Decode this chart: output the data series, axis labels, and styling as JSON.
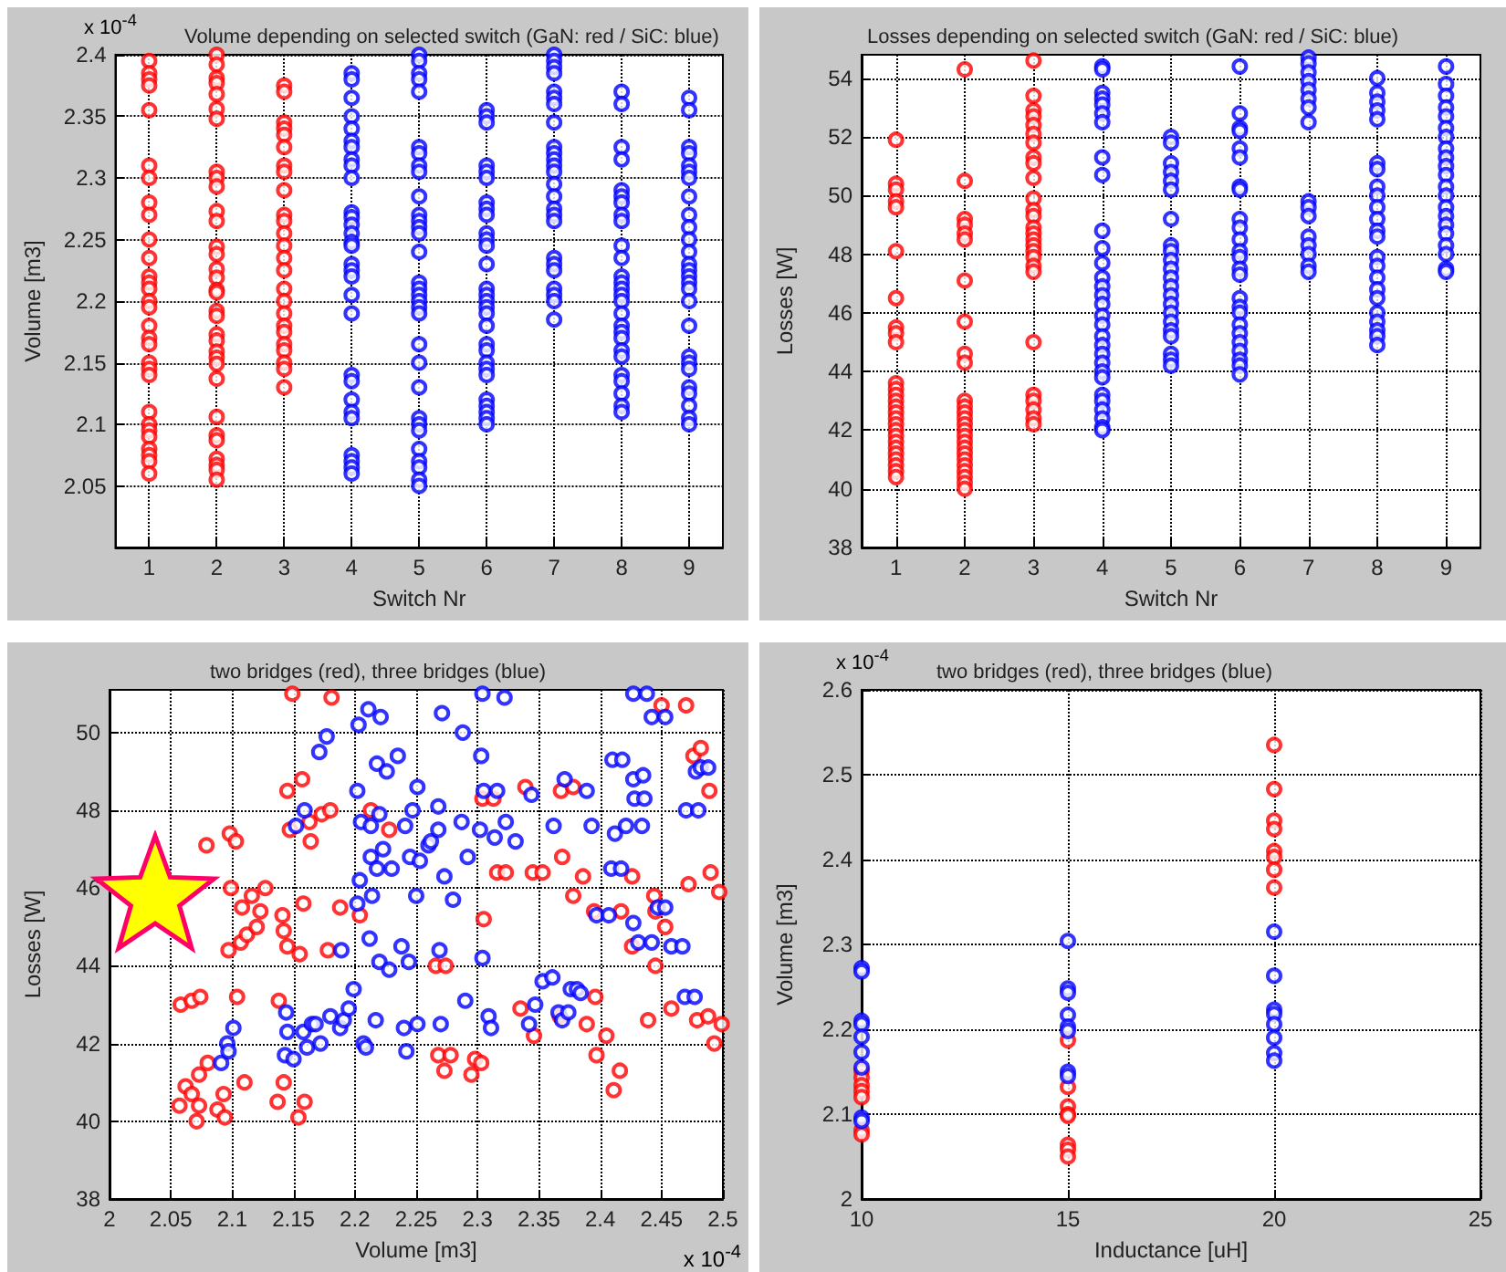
{
  "chart_data": [
    {
      "type": "scatter",
      "title": "Volume depending on selected switch (GaN: red / SiC: blue)",
      "xlabel": "Switch Nr",
      "ylabel": "Volume [m3]",
      "annotations": [
        "x 10$^{-4}$"
      ],
      "xlim": [
        0.5,
        9.5
      ],
      "xticks": [
        1,
        2,
        3,
        4,
        5,
        6,
        7,
        8,
        9
      ],
      "ylim": [
        2,
        2.4
      ],
      "yticks": [
        2.05,
        2.1,
        2.15,
        2.2,
        2.25,
        2.3,
        2.35,
        2.4
      ],
      "grid": true,
      "marker": "circle",
      "series": [
        {
          "color": "#ff0000",
          "x": [
            1,
            1,
            1,
            1,
            1,
            1,
            1,
            1,
            1,
            1,
            1,
            1,
            1,
            1,
            1,
            1,
            1,
            1,
            1,
            1,
            1,
            1,
            1,
            1,
            1,
            1,
            1,
            1,
            1,
            1,
            2,
            2,
            2,
            2,
            2,
            2,
            2,
            2,
            2,
            2,
            2,
            2,
            2,
            2,
            2,
            2,
            2,
            2,
            2,
            2,
            2,
            2,
            2,
            2,
            2,
            2,
            2,
            2,
            2,
            2,
            2,
            2,
            2,
            3,
            3,
            3,
            3,
            3,
            3,
            3,
            3,
            3,
            3,
            3,
            3,
            3,
            3,
            3,
            3,
            3,
            3,
            3,
            3,
            3,
            3,
            3,
            3,
            3
          ],
          "values": [
            2.395,
            2.385,
            2.38,
            2.375,
            2.355,
            2.31,
            2.3,
            2.28,
            2.27,
            2.25,
            2.235,
            2.22,
            2.215,
            2.21,
            2.2,
            2.195,
            2.18,
            2.17,
            2.165,
            2.15,
            2.145,
            2.14,
            2.11,
            2.1,
            2.095,
            2.09,
            2.08,
            2.075,
            2.07,
            2.06,
            2.4,
            2.392,
            2.381,
            2.377,
            2.368,
            2.356,
            2.348,
            2.305,
            2.3,
            2.293,
            2.273,
            2.265,
            2.244,
            2.238,
            2.226,
            2.219,
            2.209,
            2.207,
            2.192,
            2.188,
            2.173,
            2.168,
            2.159,
            2.154,
            2.149,
            2.137,
            2.106,
            2.091,
            2.087,
            2.072,
            2.067,
            2.063,
            2.055,
            2.375,
            2.37,
            2.345,
            2.34,
            2.335,
            2.325,
            2.31,
            2.305,
            2.29,
            2.27,
            2.265,
            2.255,
            2.245,
            2.235,
            2.225,
            2.21,
            2.2,
            2.19,
            2.18,
            2.175,
            2.165,
            2.16,
            2.15,
            2.145,
            2.13
          ]
        },
        {
          "color": "#0000ff",
          "x": [
            4,
            4,
            4,
            4,
            4,
            4,
            4,
            4,
            4,
            4,
            4,
            4,
            4,
            4,
            4,
            4,
            4,
            4,
            4,
            4,
            4,
            4,
            4,
            4,
            4,
            4,
            4,
            4,
            4,
            4,
            5,
            5,
            5,
            5,
            5,
            5,
            5,
            5,
            5,
            5,
            5,
            5,
            5,
            5,
            5,
            5,
            5,
            5,
            5,
            5,
            5,
            5,
            5,
            5,
            5,
            5,
            5,
            5,
            5,
            5,
            5,
            5,
            6,
            6,
            6,
            6,
            6,
            6,
            6,
            6,
            6,
            6,
            6,
            6,
            6,
            6,
            6,
            6,
            6,
            6,
            6,
            6,
            6,
            6,
            6,
            6,
            6,
            6,
            6,
            6,
            6,
            7,
            7,
            7,
            7,
            7,
            7,
            7,
            7,
            7,
            7,
            7,
            7,
            7,
            7,
            7,
            7,
            7,
            7,
            7,
            7,
            7,
            7,
            7,
            7,
            7,
            8,
            8,
            8,
            8,
            8,
            8,
            8,
            8,
            8,
            8,
            8,
            8,
            8,
            8,
            8,
            8,
            8,
            8,
            8,
            8,
            8,
            8,
            8,
            8,
            8,
            8,
            8,
            9,
            9,
            9,
            9,
            9,
            9,
            9,
            9,
            9,
            9,
            9,
            9,
            9,
            9,
            9,
            9,
            9,
            9,
            9,
            9,
            9,
            9,
            9,
            9,
            9,
            9,
            9
          ],
          "values": [
            2.385,
            2.38,
            2.365,
            2.35,
            2.34,
            2.33,
            2.325,
            2.315,
            2.31,
            2.3,
            2.272,
            2.268,
            2.262,
            2.255,
            2.248,
            2.245,
            2.23,
            2.225,
            2.22,
            2.205,
            2.19,
            2.14,
            2.135,
            2.12,
            2.11,
            2.105,
            2.075,
            2.07,
            2.065,
            2.06,
            2.4,
            2.395,
            2.385,
            2.38,
            2.37,
            2.325,
            2.32,
            2.31,
            2.305,
            2.285,
            2.27,
            2.265,
            2.26,
            2.255,
            2.24,
            2.215,
            2.21,
            2.205,
            2.2,
            2.195,
            2.19,
            2.165,
            2.15,
            2.13,
            2.105,
            2.1,
            2.095,
            2.08,
            2.07,
            2.065,
            2.055,
            2.05,
            2.355,
            2.35,
            2.345,
            2.31,
            2.305,
            2.3,
            2.28,
            2.275,
            2.27,
            2.255,
            2.25,
            2.245,
            2.23,
            2.21,
            2.205,
            2.2,
            2.195,
            2.19,
            2.18,
            2.165,
            2.16,
            2.15,
            2.145,
            2.14,
            2.12,
            2.115,
            2.11,
            2.105,
            2.1,
            2.4,
            2.395,
            2.39,
            2.385,
            2.37,
            2.365,
            2.36,
            2.345,
            2.325,
            2.32,
            2.315,
            2.31,
            2.305,
            2.295,
            2.285,
            2.275,
            2.27,
            2.265,
            2.235,
            2.23,
            2.225,
            2.21,
            2.205,
            2.2,
            2.185,
            2.37,
            2.36,
            2.325,
            2.315,
            2.29,
            2.285,
            2.28,
            2.27,
            2.265,
            2.245,
            2.235,
            2.22,
            2.215,
            2.21,
            2.205,
            2.2,
            2.19,
            2.18,
            2.175,
            2.17,
            2.16,
            2.155,
            2.14,
            2.135,
            2.125,
            2.115,
            2.11,
            2.365,
            2.355,
            2.325,
            2.32,
            2.31,
            2.305,
            2.3,
            2.285,
            2.27,
            2.26,
            2.25,
            2.24,
            2.23,
            2.225,
            2.22,
            2.215,
            2.21,
            2.2,
            2.18,
            2.155,
            2.15,
            2.145,
            2.13,
            2.125,
            2.115,
            2.105,
            2.1
          ]
        }
      ]
    },
    {
      "type": "scatter",
      "title": "Losses depending on selected switch (GaN: red / SiC: blue)",
      "xlabel": "Switch Nr",
      "ylabel": "Losses [W]",
      "xlim": [
        0.5,
        9.5
      ],
      "xticks": [
        1,
        2,
        3,
        4,
        5,
        6,
        7,
        8,
        9
      ],
      "ylim": [
        38,
        54.8
      ],
      "yticks": [
        38,
        40,
        42,
        44,
        46,
        48,
        50,
        52,
        54
      ],
      "grid": true,
      "marker": "circle",
      "series": [
        {
          "color": "#ff0000",
          "x": [
            1,
            1,
            1,
            1,
            1,
            1,
            1,
            1,
            1,
            1,
            1,
            1,
            1,
            1,
            1,
            1,
            1,
            1,
            1,
            1,
            1,
            1,
            1,
            1,
            1,
            1,
            1,
            2,
            2,
            2,
            2,
            2,
            2,
            2,
            2,
            2,
            2,
            2,
            2,
            2,
            2,
            2,
            2,
            2,
            2,
            2,
            2,
            2,
            2,
            2,
            2,
            2,
            2,
            3,
            3,
            3,
            3,
            3,
            3,
            3,
            3,
            3,
            3,
            3,
            3,
            3,
            3,
            3,
            3,
            3,
            3,
            3,
            3,
            3,
            3,
            3,
            3,
            3,
            3,
            3
          ],
          "values": [
            51.9,
            50.4,
            50.2,
            49.8,
            49.6,
            48.1,
            46.5,
            45.5,
            45.3,
            45.0,
            43.6,
            43.4,
            43.2,
            43.0,
            42.8,
            42.6,
            42.4,
            42.2,
            42.0,
            41.8,
            41.6,
            41.4,
            41.2,
            41.0,
            40.8,
            40.6,
            40.4,
            54.3,
            50.5,
            49.2,
            49.0,
            48.7,
            48.5,
            47.1,
            45.7,
            44.6,
            44.3,
            43.0,
            42.8,
            42.6,
            42.4,
            42.2,
            42.0,
            41.8,
            41.6,
            41.4,
            41.2,
            41.0,
            40.8,
            40.6,
            40.4,
            40.2,
            40.0,
            54.6,
            53.4,
            52.9,
            52.7,
            52.4,
            52.1,
            51.8,
            51.3,
            51.1,
            50.6,
            49.9,
            49.5,
            49.3,
            48.9,
            48.7,
            48.5,
            48.3,
            48.1,
            47.9,
            47.6,
            47.4,
            45.0,
            43.2,
            43.0,
            42.7,
            42.4,
            42.2
          ]
        },
        {
          "color": "#0000ff",
          "x": [
            4,
            4,
            4,
            4,
            4,
            4,
            4,
            4,
            4,
            4,
            4,
            4,
            4,
            4,
            4,
            4,
            4,
            4,
            4,
            4,
            4,
            4,
            4,
            4,
            4,
            4,
            4,
            4,
            4,
            4,
            5,
            5,
            5,
            5,
            5,
            5,
            5,
            5,
            5,
            5,
            5,
            5,
            5,
            5,
            5,
            5,
            5,
            5,
            5,
            5,
            5,
            5,
            6,
            6,
            6,
            6,
            6,
            6,
            6,
            6,
            6,
            6,
            6,
            6,
            6,
            6,
            6,
            6,
            6,
            6,
            6,
            6,
            6,
            6,
            6,
            6,
            6,
            7,
            7,
            7,
            7,
            7,
            7,
            7,
            7,
            7,
            7,
            7,
            7,
            7,
            7,
            7,
            7,
            8,
            8,
            8,
            8,
            8,
            8,
            8,
            8,
            8,
            8,
            8,
            8,
            8,
            8,
            8,
            8,
            8,
            8,
            8,
            8,
            8,
            8,
            8,
            9,
            9,
            9,
            9,
            9,
            9,
            9,
            9,
            9,
            9,
            9,
            9,
            9,
            9,
            9,
            9,
            9,
            9,
            9,
            9,
            9
          ],
          "values": [
            54.4,
            54.3,
            53.5,
            53.3,
            53.1,
            52.8,
            52.5,
            51.3,
            50.7,
            48.8,
            48.2,
            47.7,
            47.2,
            46.9,
            46.6,
            46.3,
            45.9,
            45.6,
            45.2,
            44.9,
            44.6,
            44.3,
            44.0,
            43.8,
            43.2,
            43.0,
            42.7,
            42.4,
            42.1,
            42.0,
            52.0,
            51.8,
            51.1,
            50.8,
            50.5,
            50.2,
            49.2,
            48.3,
            48.1,
            47.8,
            47.5,
            47.2,
            46.9,
            46.6,
            46.3,
            46.0,
            45.7,
            45.4,
            45.2,
            44.6,
            44.4,
            44.2,
            54.4,
            52.8,
            52.3,
            52.2,
            51.6,
            51.3,
            50.3,
            50.2,
            49.2,
            48.9,
            48.5,
            48.1,
            47.9,
            47.5,
            47.3,
            46.5,
            46.2,
            46.0,
            45.6,
            45.3,
            45.0,
            44.7,
            44.4,
            44.2,
            43.9,
            54.7,
            54.5,
            54.2,
            53.9,
            53.6,
            53.3,
            53.0,
            52.5,
            49.8,
            49.6,
            49.3,
            48.6,
            48.3,
            48.0,
            47.6,
            47.4,
            54.0,
            53.5,
            53.2,
            52.9,
            52.6,
            51.1,
            50.9,
            50.3,
            50.0,
            49.6,
            49.2,
            48.8,
            48.6,
            47.9,
            47.6,
            47.2,
            46.8,
            46.5,
            46.0,
            45.7,
            45.4,
            45.2,
            44.9,
            54.4,
            53.8,
            53.4,
            53.0,
            52.7,
            52.3,
            52.0,
            51.6,
            51.3,
            51.0,
            50.7,
            50.3,
            50.0,
            49.6,
            49.3,
            49.0,
            48.7,
            48.3,
            48.0,
            47.5,
            47.4
          ]
        }
      ]
    },
    {
      "type": "scatter",
      "title": "two bridges (red), three bridges (blue)",
      "xlabel": "Volume [m3]",
      "ylabel": "Losses [W]",
      "annotations": [
        "x 10$^{-4}$"
      ],
      "xlim": [
        2,
        2.5
      ],
      "xticks": [
        2,
        2.05,
        2.1,
        2.15,
        2.2,
        2.25,
        2.3,
        2.35,
        2.4,
        2.45,
        2.5
      ],
      "ylim": [
        38,
        51.1
      ],
      "yticks": [
        38,
        40,
        42,
        44,
        46,
        48,
        50
      ],
      "grid": true,
      "marker": "circle",
      "series": [
        {
          "color": "#ff0000",
          "x": [
            2.057,
            2.062,
            2.067,
            2.073,
            2.073,
            2.071,
            2.058,
            2.067,
            2.074,
            2.079,
            2.08,
            2.088,
            2.093,
            2.094,
            2.097,
            2.098,
            2.103,
            2.099,
            2.108,
            2.107,
            2.11,
            2.104,
            2.112,
            2.116,
            2.12,
            2.123,
            2.127,
            2.138,
            2.137,
            2.141,
            2.142,
            2.142,
            2.145,
            2.145,
            2.147,
            2.149,
            2.155,
            2.157,
            2.158,
            2.159,
            2.154,
            2.163,
            2.164,
            2.173,
            2.178,
            2.18,
            2.181,
            2.188,
            2.204,
            2.213,
            2.228,
            2.266,
            2.268,
            2.273,
            2.274,
            2.278,
            2.295,
            2.298,
            2.303,
            2.304,
            2.305,
            2.313,
            2.316,
            2.323,
            2.335,
            2.339,
            2.346,
            2.345,
            2.353,
            2.367,
            2.369,
            2.368,
            2.378,
            2.378,
            2.386,
            2.389,
            2.395,
            2.396,
            2.397,
            2.405,
            2.411,
            2.416,
            2.417,
            2.426,
            2.426,
            2.439,
            2.444,
            2.445,
            2.445,
            2.45,
            2.453,
            2.458,
            2.47,
            2.472,
            2.476,
            2.479,
            2.482,
            2.488,
            2.489,
            2.49,
            2.493,
            2.497,
            2.499
          ],
          "values": [
            40.4,
            40.9,
            40.7,
            41.2,
            40.4,
            40.0,
            43.0,
            43.1,
            43.2,
            47.1,
            41.5,
            40.3,
            40.7,
            40.1,
            44.4,
            47.4,
            47.2,
            46.0,
            45.5,
            44.6,
            41.0,
            43.2,
            44.8,
            45.8,
            45.0,
            45.4,
            46.0,
            43.1,
            40.5,
            45.3,
            44.9,
            41.0,
            44.5,
            48.5,
            47.5,
            51.0,
            44.3,
            48.8,
            45.6,
            40.5,
            40.1,
            47.7,
            47.2,
            47.9,
            44.4,
            48.0,
            50.9,
            45.5,
            45.3,
            48.0,
            47.5,
            44.0,
            41.7,
            41.3,
            44.0,
            41.7,
            41.2,
            41.6,
            41.5,
            48.3,
            45.2,
            48.3,
            46.4,
            46.4,
            42.9,
            48.6,
            42.2,
            46.4,
            46.4,
            42.7,
            46.8,
            48.5,
            45.8,
            48.6,
            46.3,
            42.5,
            45.4,
            43.2,
            41.7,
            42.2,
            40.8,
            41.3,
            45.4,
            44.5,
            46.3,
            42.6,
            45.8,
            45.4,
            44.0,
            50.7,
            45.0,
            42.9,
            50.7,
            46.1,
            49.4,
            42.6,
            49.6,
            42.7,
            48.5,
            46.4,
            42.0,
            45.9,
            42.5
          ]
        },
        {
          "color": "#0000ff",
          "x": [
            2.091,
            2.096,
            2.097,
            2.101,
            2.143,
            2.144,
            2.145,
            2.15,
            2.152,
            2.158,
            2.159,
            2.161,
            2.165,
            2.168,
            2.172,
            2.171,
            2.177,
            2.18,
            2.188,
            2.189,
            2.191,
            2.195,
            2.199,
            2.202,
            2.202,
            2.203,
            2.204,
            2.205,
            2.207,
            2.209,
            2.211,
            2.212,
            2.213,
            2.213,
            2.214,
            2.217,
            2.218,
            2.218,
            2.22,
            2.22,
            2.221,
            2.223,
            2.226,
            2.228,
            2.23,
            2.235,
            2.238,
            2.24,
            2.241,
            2.242,
            2.244,
            2.245,
            2.247,
            2.25,
            2.251,
            2.251,
            2.253,
            2.26,
            2.262,
            2.268,
            2.268,
            2.269,
            2.27,
            2.271,
            2.273,
            2.28,
            2.287,
            2.288,
            2.29,
            2.292,
            2.302,
            2.303,
            2.304,
            2.304,
            2.305,
            2.309,
            2.311,
            2.314,
            2.316,
            2.322,
            2.323,
            2.331,
            2.342,
            2.344,
            2.347,
            2.353,
            2.361,
            2.362,
            2.366,
            2.369,
            2.371,
            2.374,
            2.376,
            2.381,
            2.384,
            2.389,
            2.393,
            2.397,
            2.407,
            2.409,
            2.41,
            2.412,
            2.417,
            2.418,
            2.421,
            2.427,
            2.427,
            2.427,
            2.428,
            2.431,
            2.434,
            2.435,
            2.436,
            2.438,
            2.442,
            2.442,
            2.447,
            2.453,
            2.453,
            2.458,
            2.467,
            2.469,
            2.47,
            2.477,
            2.478,
            2.48,
            2.482,
            2.488
          ],
          "values": [
            41.5,
            42.0,
            41.8,
            42.4,
            41.7,
            42.8,
            42.3,
            41.6,
            47.6,
            42.3,
            48.0,
            41.9,
            42.5,
            42.5,
            42.0,
            49.5,
            49.9,
            42.7,
            42.4,
            44.4,
            42.6,
            42.9,
            43.4,
            48.5,
            45.6,
            50.2,
            46.2,
            47.7,
            42.0,
            41.9,
            50.6,
            44.7,
            47.6,
            46.8,
            45.8,
            42.6,
            49.2,
            46.5,
            47.9,
            44.1,
            50.4,
            47.0,
            49.0,
            43.9,
            46.5,
            49.4,
            44.5,
            42.4,
            47.6,
            41.8,
            44.1,
            46.8,
            48.0,
            45.8,
            48.6,
            42.5,
            46.7,
            47.1,
            47.2,
            48.1,
            47.5,
            44.4,
            42.5,
            50.5,
            46.3,
            45.7,
            47.7,
            50.0,
            43.1,
            46.8,
            47.5,
            49.4,
            51.0,
            44.2,
            48.5,
            42.7,
            42.4,
            47.3,
            48.5,
            50.9,
            47.7,
            47.2,
            42.5,
            48.4,
            43.0,
            43.6,
            43.7,
            47.6,
            42.8,
            42.6,
            48.8,
            42.8,
            43.4,
            43.4,
            43.3,
            48.5,
            47.6,
            45.3,
            45.3,
            46.5,
            49.3,
            47.4,
            46.5,
            49.3,
            47.6,
            51.0,
            45.1,
            48.8,
            48.3,
            44.6,
            47.6,
            48.9,
            48.3,
            51.0,
            50.4,
            44.6,
            45.5,
            50.4,
            45.5,
            44.5,
            44.5,
            43.2,
            48.0,
            43.2,
            49.0,
            48.0,
            49.1,
            49.1
          ]
        }
      ]
    },
    {
      "type": "scatter",
      "title": "two bridges (red), three bridges (blue)",
      "xlabel": "Inductance [uH]",
      "ylabel": "Volume [m3]",
      "annotations": [
        "x 10$^{-4}$"
      ],
      "xlim": [
        10,
        25
      ],
      "xticks": [
        10,
        15,
        20,
        25
      ],
      "ylim": [
        2,
        2.6
      ],
      "yticks": [
        2,
        2.1,
        2.2,
        2.3,
        2.4,
        2.5,
        2.6
      ],
      "grid": true,
      "marker": "circle",
      "series": [
        {
          "color": "#ff0000",
          "x": [
            10,
            10,
            10,
            10,
            10,
            10,
            10,
            15,
            15,
            15,
            15,
            15,
            15,
            15,
            15,
            20,
            20,
            20,
            20,
            20,
            20,
            20,
            20
          ],
          "values": [
            2.151,
            2.143,
            2.134,
            2.127,
            2.12,
            2.081,
            2.076,
            2.187,
            2.132,
            2.109,
            2.1,
            2.098,
            2.064,
            2.058,
            2.05,
            2.535,
            2.483,
            2.446,
            2.436,
            2.41,
            2.403,
            2.388,
            2.367
          ]
        },
        {
          "color": "#0000ff",
          "x": [
            10,
            10,
            10,
            10,
            10,
            10,
            10,
            10,
            10,
            15,
            15,
            15,
            15,
            15,
            15,
            15,
            15,
            20,
            20,
            20,
            20,
            20,
            20,
            20,
            20
          ],
          "values": [
            2.272,
            2.268,
            2.21,
            2.206,
            2.191,
            2.173,
            2.155,
            2.096,
            2.092,
            2.304,
            2.248,
            2.243,
            2.217,
            2.203,
            2.198,
            2.15,
            2.145,
            2.315,
            2.263,
            2.223,
            2.218,
            2.206,
            2.19,
            2.172,
            2.163
          ]
        }
      ]
    }
  ]
}
